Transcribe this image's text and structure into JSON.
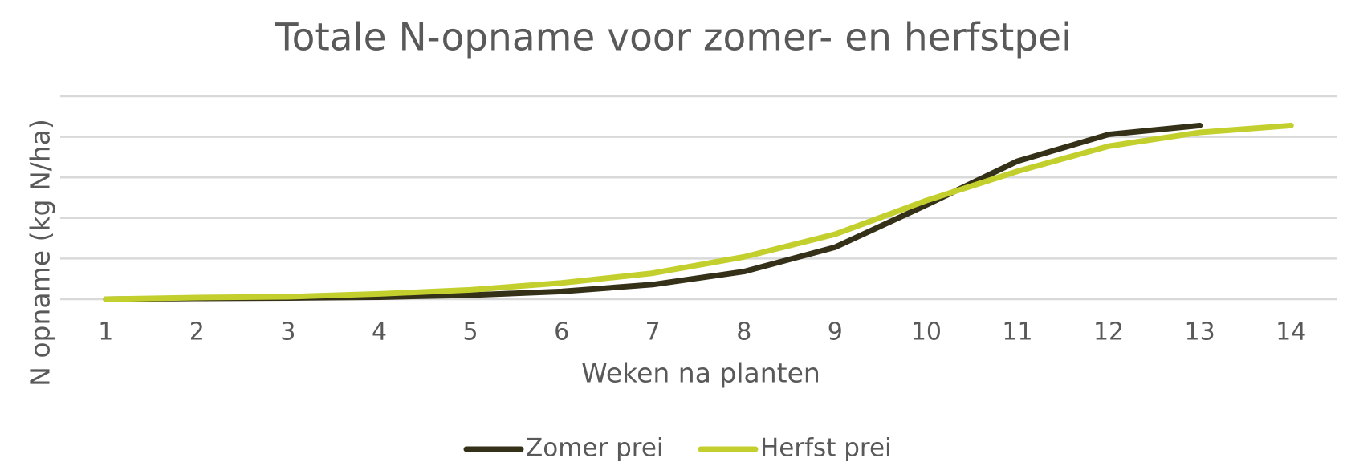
{
  "chart_data": {
    "type": "line",
    "title": "Totale N-opname voor zomer- en herfstpei",
    "x_label": "Weken na planten",
    "y_label": "N opname (kg N/ha)",
    "x": [
      1,
      2,
      3,
      4,
      5,
      6,
      7,
      8,
      9,
      10,
      11,
      12,
      13,
      14
    ],
    "xlim": [
      0.5,
      14.5
    ],
    "xticks": [
      1,
      2,
      3,
      4,
      5,
      6,
      7,
      8,
      9,
      10,
      11,
      12,
      13,
      14
    ],
    "ylim": [
      0,
      5
    ],
    "yticks": [
      0,
      1,
      2,
      3,
      4,
      5
    ],
    "show_ytick_labels": false,
    "grid": true,
    "legend": "bottom",
    "series": [
      {
        "name": "Zomer prei",
        "color": "#343118",
        "values": [
          0,
          0.02,
          0.03,
          0.05,
          0.1,
          0.19,
          0.36,
          0.68,
          1.28,
          2.32,
          3.4,
          4.06,
          4.28,
          null
        ]
      },
      {
        "name": "Herfst prei",
        "color": "#c2cf2d",
        "values": [
          0,
          0.04,
          0.06,
          0.13,
          0.23,
          0.4,
          0.64,
          1.04,
          1.6,
          2.43,
          3.15,
          3.77,
          4.11,
          4.28
        ]
      }
    ]
  }
}
